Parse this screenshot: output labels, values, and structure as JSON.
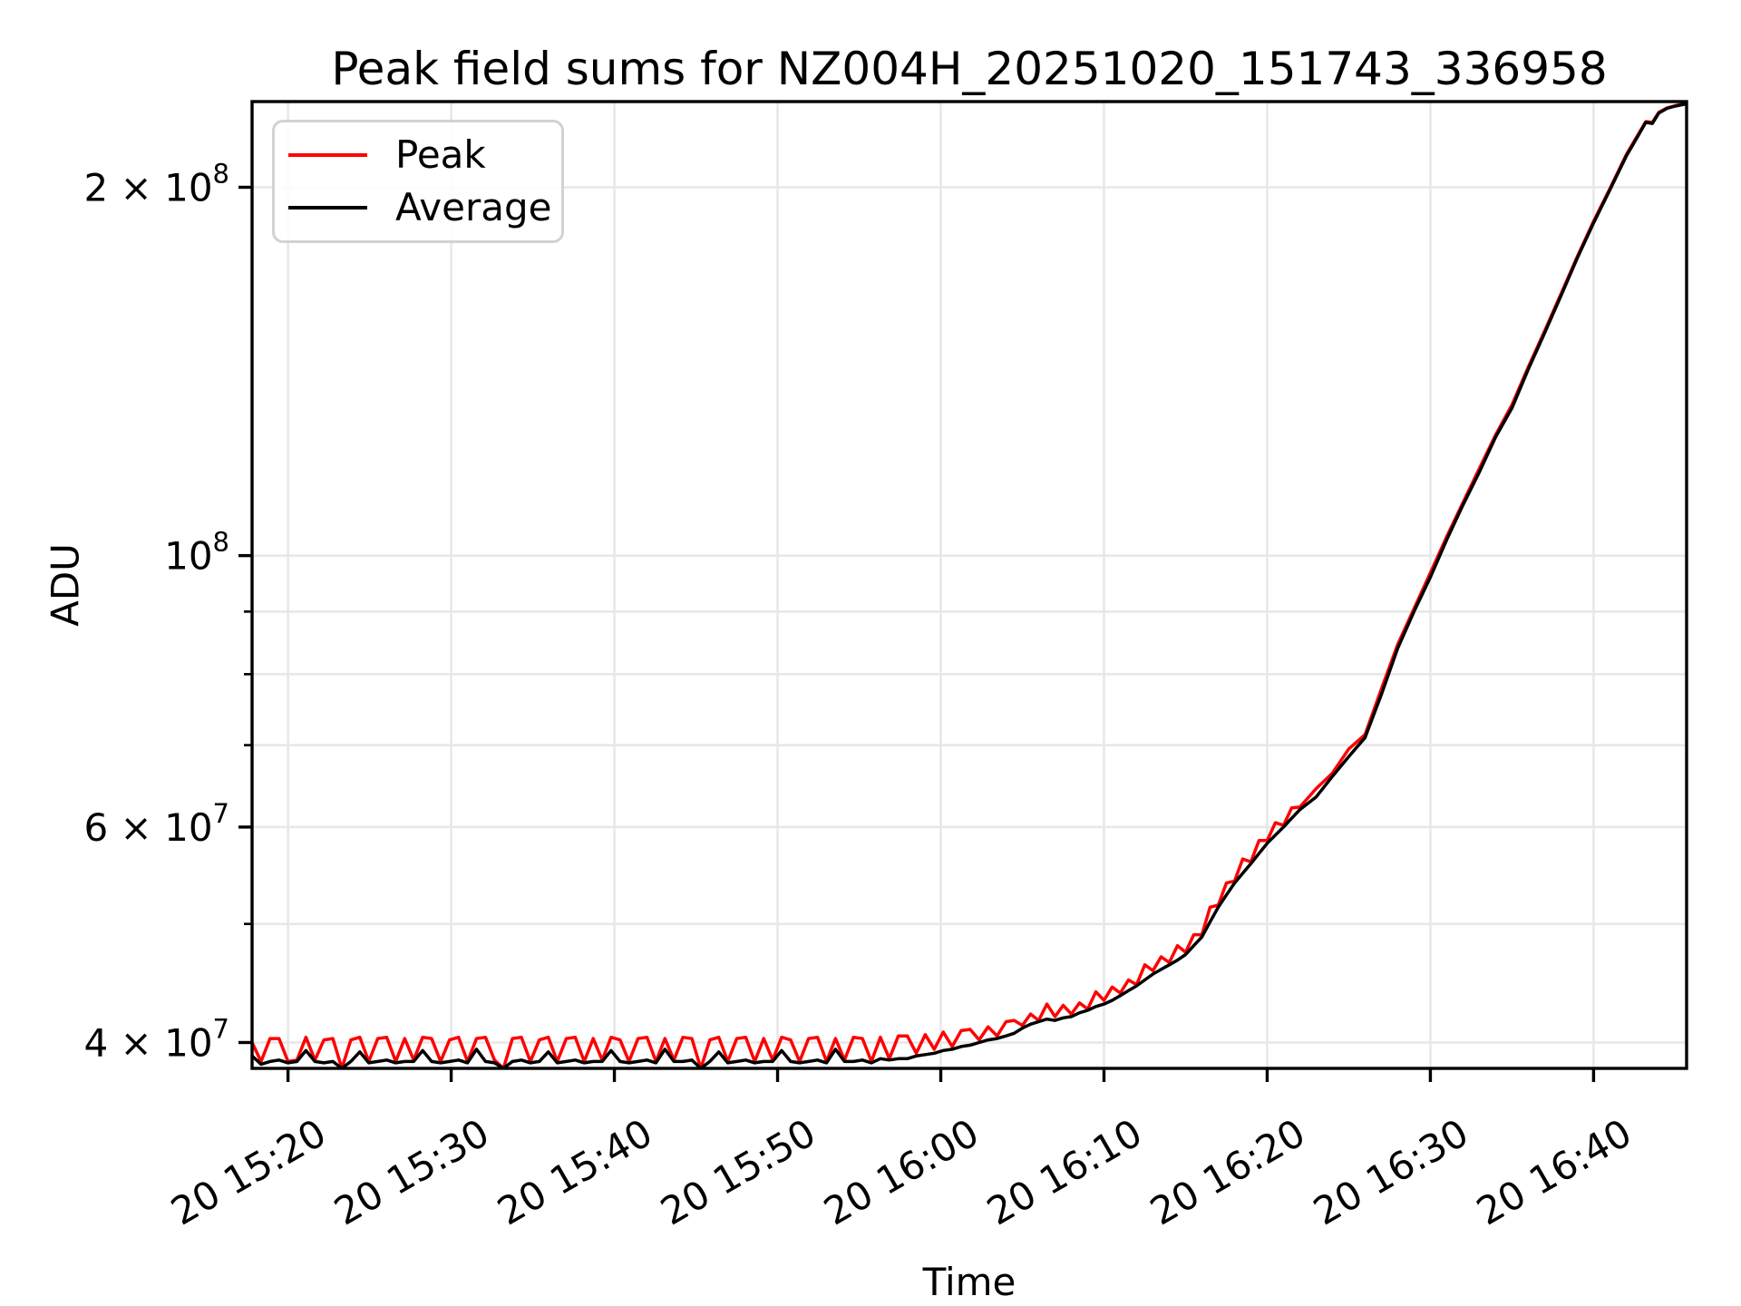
{
  "page": {
    "background": "#ffffff"
  },
  "chart_data": {
    "type": "line",
    "title": "Peak field sums for NZ004H_20251020_151743_336958",
    "xlabel": "Time",
    "ylabel": "ADU",
    "grid": {
      "enabled": true,
      "color": "#e7e7e7"
    },
    "frame_color": "#000000",
    "x_axis": {
      "unit": "minutes after 20 15:20",
      "range": [
        -2.2,
        85.7
      ],
      "tick_rotation_deg": 30,
      "ticks": [
        {
          "t": 0,
          "label": "20 15:20"
        },
        {
          "t": 10,
          "label": "20 15:30"
        },
        {
          "t": 20,
          "label": "20 15:40"
        },
        {
          "t": 30,
          "label": "20 15:50"
        },
        {
          "t": 40,
          "label": "20 16:00"
        },
        {
          "t": 50,
          "label": "20 16:10"
        },
        {
          "t": 60,
          "label": "20 16:20"
        },
        {
          "t": 70,
          "label": "20 16:30"
        },
        {
          "t": 80,
          "label": "20 16:40"
        }
      ]
    },
    "y_axis": {
      "scale": "log",
      "unit": "ADU",
      "range": [
        38100000,
        235000000
      ],
      "major_ticks": [
        {
          "value": 200000000,
          "label": "2 × 10^8"
        },
        {
          "value": 100000000,
          "label": "10^8"
        },
        {
          "value": 60000000,
          "label": "6 × 10^7"
        },
        {
          "value": 40000000,
          "label": "4 × 10^7"
        }
      ],
      "minor_tick_values": [
        90000000,
        80000000,
        70000000,
        50000000
      ]
    },
    "legend": {
      "position": "upper left",
      "entries": [
        {
          "label": "Peak",
          "color": "#ff0000"
        },
        {
          "label": "Average",
          "color": "#000000"
        }
      ]
    },
    "value_scale": 10000000,
    "x_minutes": [
      -2.2,
      -1.65,
      -1.1,
      -0.55,
      0,
      0.55,
      1.1,
      1.65,
      2.2,
      2.75,
      3.3,
      3.85,
      4.4,
      4.95,
      5.5,
      6.05,
      6.6,
      7.15,
      7.7,
      8.25,
      8.8,
      9.35,
      9.9,
      10.45,
      11,
      11.55,
      12.1,
      12.65,
      13.2,
      13.75,
      14.3,
      14.85,
      15.4,
      15.95,
      16.5,
      17.05,
      17.6,
      18.15,
      18.7,
      19.25,
      19.8,
      20.35,
      20.9,
      21.45,
      22,
      22.55,
      23.1,
      23.65,
      24.2,
      24.75,
      25.3,
      25.85,
      26.4,
      26.95,
      27.5,
      28.05,
      28.6,
      29.15,
      29.7,
      30.25,
      30.8,
      31.35,
      31.9,
      32.45,
      33,
      33.55,
      34.1,
      34.65,
      35.2,
      35.75,
      36.3,
      36.85,
      37.4,
      37.95,
      38.5,
      39.05,
      39.6,
      40.15,
      40.7,
      41.25,
      41.8,
      42.35,
      42.9,
      43.45,
      44,
      44.5,
      45,
      45.5,
      46,
      46.5,
      47,
      47.5,
      48,
      48.5,
      49,
      49.5,
      50,
      50.5,
      51,
      51.5,
      52,
      52.5,
      53,
      53.5,
      54,
      54.5,
      55,
      55.5,
      56,
      56.5,
      57,
      57.5,
      58,
      58.5,
      59,
      59.5,
      60,
      60.5,
      61,
      61.5,
      62,
      63,
      64,
      65,
      66,
      67,
      68,
      69,
      70,
      71,
      72,
      73,
      74,
      75,
      76,
      77,
      78,
      79,
      80,
      81,
      82,
      82.7,
      83.2,
      83.6,
      84,
      84.5,
      85,
      85.7
    ],
    "series": [
      {
        "name": "Peak",
        "color": "#ff0000",
        "values_1e7": [
          4.0,
          3.86,
          4.03,
          4.03,
          3.86,
          3.87,
          4.04,
          3.87,
          4.02,
          4.03,
          3.8,
          4.02,
          4.04,
          3.86,
          4.03,
          4.04,
          3.86,
          4.03,
          3.87,
          4.04,
          4.03,
          3.86,
          4.02,
          4.04,
          3.86,
          4.03,
          4.04,
          3.87,
          3.8,
          4.03,
          4.04,
          3.86,
          4.02,
          4.04,
          3.86,
          4.03,
          4.04,
          3.86,
          4.03,
          3.87,
          4.04,
          4.02,
          3.86,
          4.03,
          4.04,
          3.86,
          4.03,
          3.87,
          4.04,
          4.03,
          3.8,
          4.02,
          4.04,
          3.86,
          4.03,
          4.04,
          3.86,
          4.03,
          3.87,
          4.04,
          4.02,
          3.86,
          4.03,
          4.04,
          3.86,
          4.03,
          3.87,
          4.04,
          4.03,
          3.86,
          4.04,
          3.88,
          4.05,
          4.05,
          3.92,
          4.06,
          3.95,
          4.08,
          3.97,
          4.09,
          4.1,
          4.02,
          4.12,
          4.05,
          4.16,
          4.17,
          4.13,
          4.22,
          4.17,
          4.3,
          4.2,
          4.29,
          4.22,
          4.31,
          4.26,
          4.4,
          4.33,
          4.44,
          4.39,
          4.5,
          4.46,
          4.63,
          4.58,
          4.7,
          4.65,
          4.8,
          4.74,
          4.9,
          4.9,
          5.16,
          5.18,
          5.4,
          5.42,
          5.65,
          5.62,
          5.85,
          5.85,
          6.05,
          6.02,
          6.22,
          6.23,
          6.45,
          6.64,
          6.95,
          7.14,
          7.78,
          8.46,
          9.05,
          9.68,
          10.36,
          11.05,
          11.78,
          12.55,
          13.28,
          14.26,
          15.26,
          16.36,
          17.55,
          18.76,
          19.95,
          21.26,
          22.05,
          22.63,
          22.6,
          23.03,
          23.22,
          23.32,
          23.42
        ]
      },
      {
        "name": "Average",
        "color": "#000000",
        "values_1e7": [
          3.9,
          3.84,
          3.86,
          3.87,
          3.85,
          3.86,
          3.94,
          3.86,
          3.85,
          3.86,
          3.79,
          3.86,
          3.93,
          3.85,
          3.86,
          3.87,
          3.85,
          3.86,
          3.86,
          3.94,
          3.86,
          3.85,
          3.86,
          3.87,
          3.85,
          3.95,
          3.86,
          3.85,
          3.79,
          3.86,
          3.87,
          3.85,
          3.86,
          3.93,
          3.85,
          3.86,
          3.87,
          3.85,
          3.86,
          3.86,
          3.94,
          3.86,
          3.85,
          3.86,
          3.87,
          3.85,
          3.95,
          3.86,
          3.86,
          3.87,
          3.79,
          3.86,
          3.93,
          3.85,
          3.86,
          3.87,
          3.85,
          3.86,
          3.86,
          3.94,
          3.86,
          3.85,
          3.86,
          3.87,
          3.85,
          3.95,
          3.86,
          3.86,
          3.87,
          3.85,
          3.88,
          3.87,
          3.88,
          3.88,
          3.9,
          3.91,
          3.92,
          3.94,
          3.95,
          3.97,
          3.98,
          4.0,
          4.02,
          4.03,
          4.05,
          4.07,
          4.11,
          4.14,
          4.16,
          4.18,
          4.17,
          4.19,
          4.2,
          4.23,
          4.25,
          4.28,
          4.3,
          4.33,
          4.37,
          4.41,
          4.45,
          4.5,
          4.55,
          4.59,
          4.63,
          4.67,
          4.72,
          4.8,
          4.88,
          5.02,
          5.16,
          5.28,
          5.4,
          5.5,
          5.6,
          5.71,
          5.82,
          5.91,
          6.0,
          6.1,
          6.2,
          6.35,
          6.6,
          6.85,
          7.1,
          7.7,
          8.4,
          9.0,
          9.6,
          10.3,
          11.0,
          11.7,
          12.5,
          13.2,
          14.2,
          15.2,
          16.3,
          17.5,
          18.7,
          19.9,
          21.2,
          22.0,
          22.6,
          22.55,
          23.0,
          23.2,
          23.3,
          23.4
        ]
      }
    ]
  }
}
